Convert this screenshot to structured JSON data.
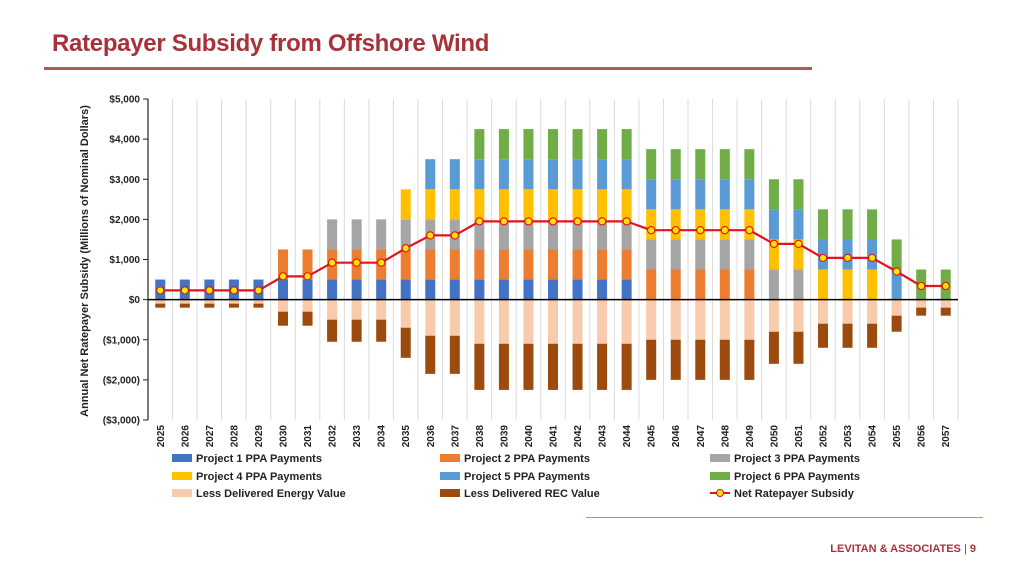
{
  "header": {
    "title": "Ratepayer Subsidy from Offshore Wind"
  },
  "footer": {
    "company": "LEVITAN & ASSOCIATES",
    "separator": "|",
    "page_number": "9"
  },
  "colors": {
    "p1": "#4472c4",
    "p2": "#ed7d31",
    "p3": "#a5a5a5",
    "p4": "#ffc000",
    "p5": "#5b9bd5",
    "p6": "#70ad47",
    "energy": "#f8cbad",
    "rec": "#9c4a0e",
    "net_line": "#e3121b",
    "net_marker": "#ffe600"
  },
  "chart_data": {
    "type": "bar",
    "stacked": true,
    "title": "",
    "xlabel": "",
    "ylabel": "Annual Net Ratepayer Subsidy (Millions of Nominal Dollars)",
    "ylim": [
      -3000,
      5000
    ],
    "yticks": [
      5000,
      4000,
      3000,
      2000,
      1000,
      0,
      -1000,
      -2000,
      -3000
    ],
    "ytick_labels": [
      "$5,000",
      "$4,000",
      "$3,000",
      "$2,000",
      "$1,000",
      "$0",
      "($1,000)",
      "($2,000)",
      "($3,000)"
    ],
    "grid": "vertical",
    "legend_position": "bottom",
    "categories": [
      "2025",
      "2026",
      "2027",
      "2028",
      "2029",
      "2030",
      "2031",
      "2032",
      "2033",
      "2034",
      "2035",
      "2036",
      "2037",
      "2038",
      "2039",
      "2040",
      "2041",
      "2042",
      "2043",
      "2044",
      "2045",
      "2046",
      "2047",
      "2048",
      "2049",
      "2050",
      "2051",
      "2052",
      "2053",
      "2054",
      "2055",
      "2056",
      "2057"
    ],
    "series": [
      {
        "name": "Project 1 PPA Payments",
        "key": "p1",
        "kind": "bar",
        "values": [
          500,
          500,
          500,
          500,
          500,
          500,
          500,
          500,
          500,
          500,
          500,
          500,
          500,
          500,
          500,
          500,
          500,
          500,
          500,
          500,
          0,
          0,
          0,
          0,
          0,
          0,
          0,
          0,
          0,
          0,
          0,
          0,
          0
        ]
      },
      {
        "name": "Project 2 PPA Payments",
        "key": "p2",
        "kind": "bar",
        "values": [
          0,
          0,
          0,
          0,
          0,
          750,
          750,
          750,
          750,
          750,
          750,
          750,
          750,
          750,
          750,
          750,
          750,
          750,
          750,
          750,
          750,
          750,
          750,
          750,
          750,
          0,
          0,
          0,
          0,
          0,
          0,
          0,
          0
        ]
      },
      {
        "name": "Project 3 PPA Payments",
        "key": "p3",
        "kind": "bar",
        "values": [
          0,
          0,
          0,
          0,
          0,
          0,
          0,
          750,
          750,
          750,
          750,
          750,
          750,
          750,
          750,
          750,
          750,
          750,
          750,
          750,
          750,
          750,
          750,
          750,
          750,
          750,
          750,
          0,
          0,
          0,
          0,
          0,
          0
        ]
      },
      {
        "name": "Project 4 PPA Payments",
        "key": "p4",
        "kind": "bar",
        "values": [
          0,
          0,
          0,
          0,
          0,
          0,
          0,
          0,
          0,
          0,
          750,
          750,
          750,
          750,
          750,
          750,
          750,
          750,
          750,
          750,
          750,
          750,
          750,
          750,
          750,
          750,
          750,
          750,
          750,
          750,
          0,
          0,
          0
        ]
      },
      {
        "name": "Project 5 PPA Payments",
        "key": "p5",
        "kind": "bar",
        "values": [
          0,
          0,
          0,
          0,
          0,
          0,
          0,
          0,
          0,
          0,
          0,
          750,
          750,
          750,
          750,
          750,
          750,
          750,
          750,
          750,
          750,
          750,
          750,
          750,
          750,
          750,
          750,
          750,
          750,
          750,
          750,
          0,
          0
        ]
      },
      {
        "name": "Project 6 PPA Payments",
        "key": "p6",
        "kind": "bar",
        "values": [
          0,
          0,
          0,
          0,
          0,
          0,
          0,
          0,
          0,
          0,
          0,
          0,
          0,
          750,
          750,
          750,
          750,
          750,
          750,
          750,
          750,
          750,
          750,
          750,
          750,
          750,
          750,
          750,
          750,
          750,
          750,
          750,
          750
        ]
      },
      {
        "name": "Less Delivered Energy Value",
        "key": "energy",
        "kind": "bar",
        "values": [
          -100,
          -100,
          -100,
          -100,
          -100,
          -300,
          -300,
          -500,
          -500,
          -500,
          -700,
          -900,
          -900,
          -1100,
          -1100,
          -1100,
          -1100,
          -1100,
          -1100,
          -1100,
          -1000,
          -1000,
          -1000,
          -1000,
          -1000,
          -800,
          -800,
          -600,
          -600,
          -600,
          -400,
          -200,
          -200
        ]
      },
      {
        "name": "Less Delivered REC Value",
        "key": "rec",
        "kind": "bar",
        "values": [
          -100,
          -100,
          -100,
          -100,
          -100,
          -350,
          -350,
          -550,
          -550,
          -550,
          -750,
          -950,
          -950,
          -1150,
          -1150,
          -1150,
          -1150,
          -1150,
          -1150,
          -1150,
          -1000,
          -1000,
          -1000,
          -1000,
          -1000,
          -800,
          -800,
          -600,
          -600,
          -600,
          -400,
          -200,
          -200
        ]
      },
      {
        "name": "Net Ratepayer Subsidy",
        "key": "net",
        "kind": "line",
        "values": [
          230,
          230,
          230,
          230,
          230,
          580,
          580,
          920,
          920,
          920,
          1280,
          1600,
          1600,
          1950,
          1950,
          1950,
          1950,
          1950,
          1950,
          1950,
          1730,
          1730,
          1730,
          1730,
          1730,
          1390,
          1390,
          1040,
          1040,
          1040,
          700,
          340,
          340
        ]
      }
    ]
  }
}
